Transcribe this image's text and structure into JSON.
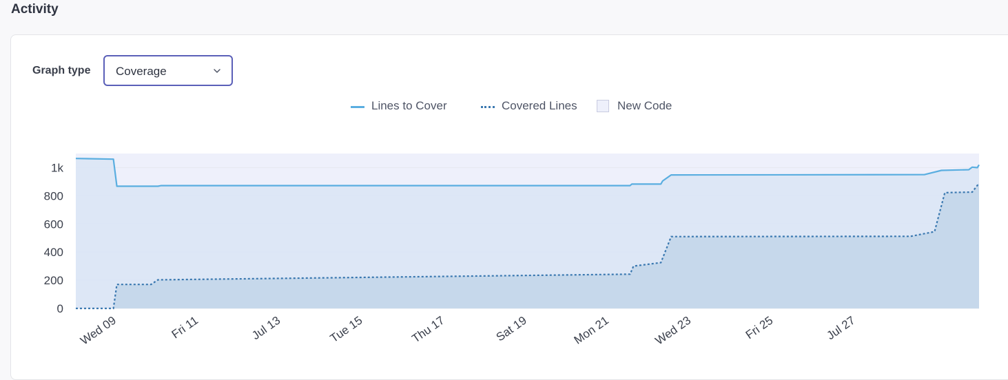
{
  "section": {
    "title": "Activity"
  },
  "controls": {
    "graph_type_label": "Graph type",
    "graph_type_value": "Coverage"
  },
  "legend": {
    "lines_to_cover": "Lines to Cover",
    "covered_lines": "Covered Lines",
    "new_code": "New Code"
  },
  "colors": {
    "lines_to_cover": "#5aaee0",
    "covered_lines": "#3a78b0",
    "area_outer": "#dbe6f5",
    "area_inner": "#c3d6ea",
    "new_code_band": "#eef0fb",
    "select_border": "#5a5fb8"
  },
  "chart_data": {
    "type": "area",
    "x_domain": [
      "2025-07-08",
      "2025-07-30"
    ],
    "ylim": [
      0,
      1100
    ],
    "y_ticks": [
      {
        "value": 0,
        "label": "0"
      },
      {
        "value": 200,
        "label": "200"
      },
      {
        "value": 400,
        "label": "400"
      },
      {
        "value": 600,
        "label": "600"
      },
      {
        "value": 800,
        "label": "800"
      },
      {
        "value": 1000,
        "label": "1k"
      }
    ],
    "x_ticks": [
      {
        "x": "2025-07-09",
        "label": "Wed 09"
      },
      {
        "x": "2025-07-11",
        "label": "Fri 11"
      },
      {
        "x": "2025-07-13",
        "label": "Jul 13"
      },
      {
        "x": "2025-07-15",
        "label": "Tue 15"
      },
      {
        "x": "2025-07-17",
        "label": "Thu 17"
      },
      {
        "x": "2025-07-19",
        "label": "Sat 19"
      },
      {
        "x": "2025-07-21",
        "label": "Mon 21"
      },
      {
        "x": "2025-07-23",
        "label": "Wed 23"
      },
      {
        "x": "2025-07-25",
        "label": "Fri 25"
      },
      {
        "x": "2025-07-27",
        "label": "Jul 27"
      }
    ],
    "new_code_period": [
      "2025-07-08",
      "2025-07-30"
    ],
    "grid": true,
    "legend_position": "top-center",
    "series": [
      {
        "name": "Lines to Cover",
        "style": "solid",
        "points": [
          [
            "2025-07-08T00:00",
            1065
          ],
          [
            "2025-07-08T22:00",
            1060
          ],
          [
            "2025-07-09T00:00",
            868
          ],
          [
            "2025-07-10T00:00",
            868
          ],
          [
            "2025-07-10T02:00",
            872
          ],
          [
            "2025-07-21T12:00",
            872
          ],
          [
            "2025-07-21T13:00",
            883
          ],
          [
            "2025-07-22T06:00",
            883
          ],
          [
            "2025-07-22T07:00",
            905
          ],
          [
            "2025-07-22T12:00",
            948
          ],
          [
            "2025-07-28T16:00",
            950
          ],
          [
            "2025-07-29T02:00",
            980
          ],
          [
            "2025-07-29T18:00",
            985
          ],
          [
            "2025-07-29T20:00",
            1003
          ],
          [
            "2025-07-29T23:00",
            1000
          ],
          [
            "2025-07-30T00:00",
            1020
          ]
        ]
      },
      {
        "name": "Covered Lines",
        "style": "dashed",
        "points": [
          [
            "2025-07-08T00:00",
            0
          ],
          [
            "2025-07-08T22:00",
            0
          ],
          [
            "2025-07-09T00:00",
            170
          ],
          [
            "2025-07-09T20:00",
            170
          ],
          [
            "2025-07-10T00:00",
            203
          ],
          [
            "2025-07-21T12:00",
            243
          ],
          [
            "2025-07-21T14:00",
            300
          ],
          [
            "2025-07-22T06:00",
            325
          ],
          [
            "2025-07-22T12:00",
            510
          ],
          [
            "2025-07-28T08:00",
            512
          ],
          [
            "2025-07-28T22:00",
            545
          ],
          [
            "2025-07-29T04:00",
            822
          ],
          [
            "2025-07-29T20:00",
            826
          ],
          [
            "2025-07-30T00:00",
            890
          ]
        ]
      }
    ]
  }
}
